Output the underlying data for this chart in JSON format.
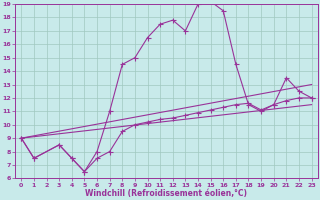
{
  "bg_color": "#c8eaea",
  "grid_color": "#a0c8c0",
  "line_color": "#993399",
  "xlabel": "Windchill (Refroidissement éolien,°C)",
  "xlim": [
    -0.5,
    23.5
  ],
  "ylim": [
    6,
    19
  ],
  "xticks": [
    0,
    1,
    2,
    3,
    4,
    5,
    6,
    7,
    8,
    9,
    10,
    11,
    12,
    13,
    14,
    15,
    16,
    17,
    18,
    19,
    20,
    21,
    22,
    23
  ],
  "yticks": [
    6,
    7,
    8,
    9,
    10,
    11,
    12,
    13,
    14,
    15,
    16,
    17,
    18,
    19
  ],
  "line1_x": [
    0,
    1,
    3,
    4,
    5,
    6,
    7,
    8,
    9,
    10,
    11,
    12,
    13,
    14,
    15,
    16,
    17,
    18,
    19,
    20,
    21,
    22,
    23
  ],
  "line1_y": [
    9.0,
    7.5,
    8.5,
    7.5,
    6.5,
    8.0,
    11.0,
    14.5,
    15.0,
    16.5,
    17.5,
    17.8,
    17.0,
    19.0,
    19.2,
    18.5,
    14.5,
    11.5,
    11.0,
    11.5,
    13.5,
    12.5,
    12.0
  ],
  "line2_x": [
    0,
    1,
    3,
    4,
    5,
    6,
    7,
    8,
    9,
    10,
    11,
    12,
    13,
    14,
    15,
    16,
    17,
    18,
    19,
    20,
    21,
    22,
    23
  ],
  "line2_y": [
    9.0,
    7.5,
    8.5,
    7.5,
    6.5,
    7.5,
    8.0,
    9.5,
    10.0,
    10.2,
    10.4,
    10.5,
    10.7,
    10.9,
    11.1,
    11.3,
    11.5,
    11.6,
    11.1,
    11.5,
    11.8,
    12.0,
    12.0
  ],
  "line3_x": [
    0,
    23
  ],
  "line3_y": [
    9.0,
    13.0
  ],
  "line4_x": [
    0,
    23
  ],
  "line4_y": [
    9.0,
    11.5
  ]
}
